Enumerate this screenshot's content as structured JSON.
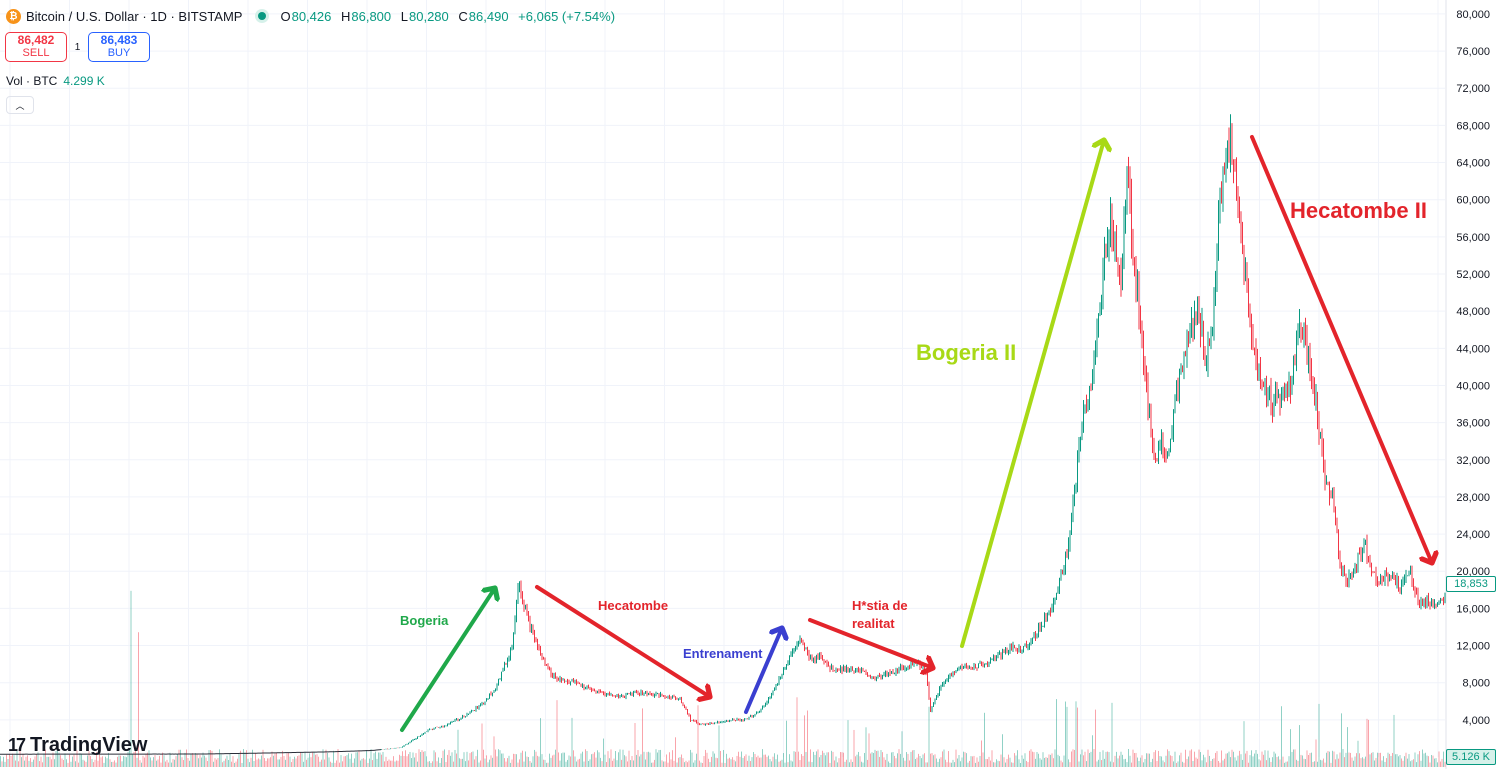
{
  "header": {
    "symbol": "Bitcoin / U.S. Dollar · 1D · BITSTAMP",
    "icon": "bitcoin-icon",
    "ohlc": {
      "o_label": "O",
      "o": "80,426",
      "h_label": "H",
      "h": "86,800",
      "l_label": "L",
      "l": "80,280",
      "c_label": "C",
      "c": "86,490",
      "change": "+6,065 (+7.54%)"
    }
  },
  "trade": {
    "sell_price": "86,482",
    "sell_label": "SELL",
    "spread": "1",
    "buy_price": "86,483",
    "buy_label": "BUY"
  },
  "volume": {
    "label": "Vol · BTC",
    "value": "4.299 K"
  },
  "logo": {
    "text": "TradingView",
    "mark": "17"
  },
  "price_tag": "18,853",
  "volume_tag": "5.126 K",
  "colors": {
    "up": "#089981",
    "down": "#f23645",
    "grid": "#f0f3fa"
  },
  "chart_data": {
    "type": "line",
    "y_ticks": [
      "80,000",
      "76,000",
      "72,000",
      "68,000",
      "64,000",
      "60,000",
      "56,000",
      "52,000",
      "48,000",
      "44,000",
      "40,000",
      "36,000",
      "32,000",
      "28,000",
      "24,000",
      "20,000",
      "16,000",
      "12,000",
      "8,000",
      "4,000"
    ],
    "ylim": [
      0,
      81500
    ],
    "grid": true,
    "price_path": [
      [
        0,
        300
      ],
      [
        200,
        320
      ],
      [
        260,
        420
      ],
      [
        300,
        500
      ],
      [
        330,
        560
      ],
      [
        370,
        700
      ],
      [
        400,
        1000
      ],
      [
        415,
        2000
      ],
      [
        430,
        3000
      ],
      [
        445,
        3400
      ],
      [
        460,
        4200
      ],
      [
        480,
        5500
      ],
      [
        495,
        7500
      ],
      [
        505,
        10000
      ],
      [
        512,
        12000
      ],
      [
        518,
        19500
      ],
      [
        522,
        17000
      ],
      [
        530,
        14000
      ],
      [
        540,
        11000
      ],
      [
        550,
        9000
      ],
      [
        560,
        8300
      ],
      [
        575,
        8000
      ],
      [
        590,
        7200
      ],
      [
        605,
        6800
      ],
      [
        620,
        6500
      ],
      [
        635,
        7000
      ],
      [
        650,
        6800
      ],
      [
        665,
        6500
      ],
      [
        680,
        6300
      ],
      [
        690,
        4000
      ],
      [
        700,
        3500
      ],
      [
        715,
        3700
      ],
      [
        730,
        4000
      ],
      [
        745,
        4000
      ],
      [
        760,
        5000
      ],
      [
        775,
        7500
      ],
      [
        790,
        11000
      ],
      [
        800,
        12500
      ],
      [
        810,
        10500
      ],
      [
        820,
        11000
      ],
      [
        830,
        9500
      ],
      [
        845,
        9500
      ],
      [
        860,
        9200
      ],
      [
        875,
        8500
      ],
      [
        890,
        9000
      ],
      [
        905,
        9700
      ],
      [
        915,
        10300
      ],
      [
        925,
        9500
      ],
      [
        930,
        5000
      ],
      [
        940,
        7500
      ],
      [
        955,
        9500
      ],
      [
        970,
        9700
      ],
      [
        985,
        10000
      ],
      [
        1000,
        11000
      ],
      [
        1010,
        11800
      ],
      [
        1020,
        11500
      ],
      [
        1030,
        12500
      ],
      [
        1040,
        14000
      ],
      [
        1050,
        16000
      ],
      [
        1060,
        19000
      ],
      [
        1070,
        24000
      ],
      [
        1080,
        35000
      ],
      [
        1090,
        40000
      ],
      [
        1100,
        48000
      ],
      [
        1105,
        55000
      ],
      [
        1110,
        58000
      ],
      [
        1115,
        55000
      ],
      [
        1120,
        50000
      ],
      [
        1127,
        63000
      ],
      [
        1132,
        55000
      ],
      [
        1140,
        47000
      ],
      [
        1148,
        37000
      ],
      [
        1155,
        32000
      ],
      [
        1160,
        34000
      ],
      [
        1168,
        33000
      ],
      [
        1175,
        38000
      ],
      [
        1182,
        42000
      ],
      [
        1190,
        46000
      ],
      [
        1198,
        48000
      ],
      [
        1205,
        43000
      ],
      [
        1212,
        46000
      ],
      [
        1218,
        58000
      ],
      [
        1224,
        63000
      ],
      [
        1230,
        67000
      ],
      [
        1236,
        60000
      ],
      [
        1242,
        55000
      ],
      [
        1248,
        48000
      ],
      [
        1256,
        42000
      ],
      [
        1264,
        40000
      ],
      [
        1272,
        38000
      ],
      [
        1280,
        39000
      ],
      [
        1290,
        40000
      ],
      [
        1300,
        47000
      ],
      [
        1308,
        42000
      ],
      [
        1316,
        38000
      ],
      [
        1324,
        30000
      ],
      [
        1332,
        28000
      ],
      [
        1340,
        20000
      ],
      [
        1348,
        19000
      ],
      [
        1356,
        21000
      ],
      [
        1364,
        23000
      ],
      [
        1372,
        20000
      ],
      [
        1380,
        19000
      ],
      [
        1390,
        19500
      ],
      [
        1400,
        18500
      ],
      [
        1410,
        20000
      ],
      [
        1418,
        16500
      ],
      [
        1428,
        16800
      ],
      [
        1438,
        16500
      ],
      [
        1445,
        17200
      ]
    ],
    "annotations": [
      {
        "text": "Bogeria",
        "color": "#1fa84a"
      },
      {
        "text": "Hecatombe",
        "color": "#e3242b"
      },
      {
        "text": "Entrenament",
        "color": "#3a3fd0"
      },
      {
        "text": "H*stia de",
        "color": "#e3242b"
      },
      {
        "text": "realitat",
        "color": "#e3242b"
      },
      {
        "text": "Bogeria II",
        "color": "#a8d916"
      },
      {
        "text": "Hecatombe II",
        "color": "#e3242b"
      }
    ]
  }
}
